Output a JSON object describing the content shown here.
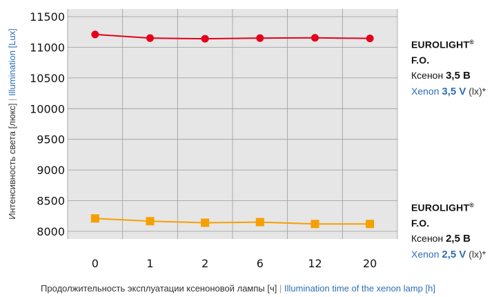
{
  "chart_data": {
    "type": "line",
    "categories": [
      "0",
      "1",
      "2",
      "6",
      "12",
      "20"
    ],
    "series": [
      {
        "name": "EUROLIGHT® F.O. Ксенон 3,5 В",
        "color": "#e3001b",
        "marker": "circle",
        "values": [
          11210,
          11150,
          11140,
          11150,
          11155,
          11145
        ]
      },
      {
        "name": "EUROLIGHT® F.O. Ксенон 2,5 В",
        "color": "#f5a000",
        "marker": "square",
        "values": [
          8210,
          8165,
          8140,
          8150,
          8120,
          8120
        ]
      }
    ],
    "ylim": [
      8000,
      11500
    ],
    "yticks": [
      8000,
      8500,
      9000,
      9500,
      10000,
      10500,
      11000,
      11500
    ],
    "ylabel_ru": "Интенсивность света [люкс]",
    "ylabel_en": "Illumination [Lux]",
    "xlabel_ru": "Продолжительность эксплуатации ксеноновой лампы [ч]",
    "xlabel_en": "Illumination time of the xenon lamp [h]",
    "separator": "|",
    "grid": true,
    "plot_background": "#e6e6e6",
    "legend_position": "right"
  },
  "legend": [
    {
      "brand": "EUROLIGHT",
      "brand_mark": "®",
      "brand_suffix": " F.O.",
      "ru_prefix": "Ксенон ",
      "ru_voltage": "3,5 В",
      "en_prefix": "Xenon ",
      "en_voltage": "3,5 V",
      "en_unit": " (lx)*"
    },
    {
      "brand": "EUROLIGHT",
      "brand_mark": "®",
      "brand_suffix": " F.O.",
      "ru_prefix": "Ксенон ",
      "ru_voltage": "2,5 В",
      "en_prefix": "Xenon ",
      "en_voltage": "2,5 V",
      "en_unit": " (lx)*"
    }
  ]
}
